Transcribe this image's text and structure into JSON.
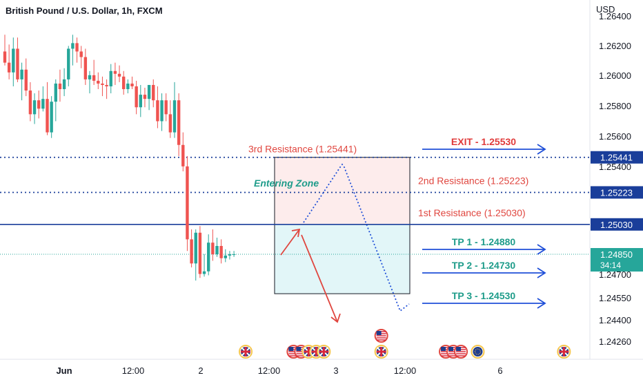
{
  "chart_data": {
    "type": "candlestick",
    "title": "British Pound / U.S. Dollar, 1h, FXCM",
    "currency": "USD",
    "y_range": [
      1.2413,
      1.2648
    ],
    "y_ticks": [
      "1.26400",
      "1.26200",
      "1.26000",
      "1.25800",
      "1.25600",
      "1.25400",
      "1.24700",
      "1.24550",
      "1.24400",
      "1.24260"
    ],
    "x_ticks": [
      "Jun",
      "12:00",
      "2",
      "12:00",
      "3",
      "12:00",
      "6"
    ],
    "candles": [
      {
        "o": 1.262,
        "h": 1.2632,
        "l": 1.261,
        "c": 1.2612
      },
      {
        "o": 1.2612,
        "h": 1.2625,
        "l": 1.26,
        "c": 1.2605
      },
      {
        "o": 1.2605,
        "h": 1.263,
        "l": 1.2595,
        "c": 1.2622
      },
      {
        "o": 1.2622,
        "h": 1.263,
        "l": 1.2598,
        "c": 1.26
      },
      {
        "o": 1.26,
        "h": 1.2612,
        "l": 1.2585,
        "c": 1.2607
      },
      {
        "o": 1.2607,
        "h": 1.2615,
        "l": 1.2588,
        "c": 1.2592
      },
      {
        "o": 1.2592,
        "h": 1.2598,
        "l": 1.257,
        "c": 1.2575
      },
      {
        "o": 1.2575,
        "h": 1.259,
        "l": 1.2568,
        "c": 1.2585
      },
      {
        "o": 1.2585,
        "h": 1.2592,
        "l": 1.2572,
        "c": 1.2579
      },
      {
        "o": 1.2579,
        "h": 1.2595,
        "l": 1.2577,
        "c": 1.2586
      },
      {
        "o": 1.2586,
        "h": 1.2598,
        "l": 1.256,
        "c": 1.2562
      },
      {
        "o": 1.2562,
        "h": 1.2588,
        "l": 1.2558,
        "c": 1.2584
      },
      {
        "o": 1.2584,
        "h": 1.26,
        "l": 1.257,
        "c": 1.2597
      },
      {
        "o": 1.2597,
        "h": 1.2607,
        "l": 1.2584,
        "c": 1.2593
      },
      {
        "o": 1.2593,
        "h": 1.2608,
        "l": 1.2588,
        "c": 1.26
      },
      {
        "o": 1.26,
        "h": 1.2624,
        "l": 1.2595,
        "c": 1.2622
      },
      {
        "o": 1.2622,
        "h": 1.2632,
        "l": 1.261,
        "c": 1.2626
      },
      {
        "o": 1.2626,
        "h": 1.263,
        "l": 1.2612,
        "c": 1.262
      },
      {
        "o": 1.262,
        "h": 1.2624,
        "l": 1.2608,
        "c": 1.2616
      },
      {
        "o": 1.2616,
        "h": 1.2622,
        "l": 1.2596,
        "c": 1.26
      },
      {
        "o": 1.26,
        "h": 1.2606,
        "l": 1.259,
        "c": 1.2603
      },
      {
        "o": 1.2603,
        "h": 1.2614,
        "l": 1.2596,
        "c": 1.2599
      },
      {
        "o": 1.2599,
        "h": 1.2605,
        "l": 1.2593,
        "c": 1.2597
      },
      {
        "o": 1.2597,
        "h": 1.2602,
        "l": 1.2588,
        "c": 1.2596
      },
      {
        "o": 1.2596,
        "h": 1.26,
        "l": 1.2586,
        "c": 1.2595
      },
      {
        "o": 1.2595,
        "h": 1.2611,
        "l": 1.259,
        "c": 1.2606
      },
      {
        "o": 1.2606,
        "h": 1.2612,
        "l": 1.2596,
        "c": 1.2604
      },
      {
        "o": 1.2604,
        "h": 1.261,
        "l": 1.2598,
        "c": 1.2602
      },
      {
        "o": 1.2602,
        "h": 1.2606,
        "l": 1.2589,
        "c": 1.2593
      },
      {
        "o": 1.2593,
        "h": 1.26,
        "l": 1.259,
        "c": 1.2597
      },
      {
        "o": 1.2597,
        "h": 1.2602,
        "l": 1.2593,
        "c": 1.2595
      },
      {
        "o": 1.2595,
        "h": 1.2599,
        "l": 1.2575,
        "c": 1.258
      },
      {
        "o": 1.258,
        "h": 1.2596,
        "l": 1.2573,
        "c": 1.2589
      },
      {
        "o": 1.2589,
        "h": 1.2594,
        "l": 1.258,
        "c": 1.2586
      },
      {
        "o": 1.2586,
        "h": 1.2595,
        "l": 1.2578,
        "c": 1.2596
      },
      {
        "o": 1.2596,
        "h": 1.26,
        "l": 1.258,
        "c": 1.2585
      },
      {
        "o": 1.2585,
        "h": 1.2595,
        "l": 1.2565,
        "c": 1.257
      },
      {
        "o": 1.257,
        "h": 1.259,
        "l": 1.2563,
        "c": 1.2585
      },
      {
        "o": 1.2585,
        "h": 1.259,
        "l": 1.257,
        "c": 1.2575
      },
      {
        "o": 1.2575,
        "h": 1.2585,
        "l": 1.2558,
        "c": 1.2562
      },
      {
        "o": 1.2562,
        "h": 1.2598,
        "l": 1.2558,
        "c": 1.2585
      },
      {
        "o": 1.2585,
        "h": 1.259,
        "l": 1.2545,
        "c": 1.2553
      },
      {
        "o": 1.2553,
        "h": 1.2562,
        "l": 1.2535,
        "c": 1.2538
      },
      {
        "o": 1.2538,
        "h": 1.2545,
        "l": 1.2487,
        "c": 1.2494
      },
      {
        "o": 1.2494,
        "h": 1.25,
        "l": 1.2475,
        "c": 1.2478
      },
      {
        "o": 1.2478,
        "h": 1.25,
        "l": 1.2465,
        "c": 1.2498
      },
      {
        "o": 1.2498,
        "h": 1.2502,
        "l": 1.2467,
        "c": 1.247
      },
      {
        "o": 1.247,
        "h": 1.2485,
        "l": 1.2468,
        "c": 1.2472
      },
      {
        "o": 1.2472,
        "h": 1.2497,
        "l": 1.2469,
        "c": 1.2492
      },
      {
        "o": 1.2492,
        "h": 1.25,
        "l": 1.248,
        "c": 1.2485
      },
      {
        "o": 1.2485,
        "h": 1.2495,
        "l": 1.2483,
        "c": 1.249
      },
      {
        "o": 1.249,
        "h": 1.2494,
        "l": 1.2478,
        "c": 1.2482
      },
      {
        "o": 1.2482,
        "h": 1.2488,
        "l": 1.2479,
        "c": 1.2484
      },
      {
        "o": 1.2484,
        "h": 1.2487,
        "l": 1.2481,
        "c": 1.2485
      },
      {
        "o": 1.2485,
        "h": 1.2487,
        "l": 1.2483,
        "c": 1.2485
      }
    ],
    "levels": [
      {
        "value": 1.25441,
        "label": "3rd Resistance (1.25441)",
        "badge": "1.25441",
        "style": "dotted"
      },
      {
        "value": 1.25223,
        "label": "2nd Resistance (1.25223)",
        "badge": "1.25223",
        "style": "dotted"
      },
      {
        "value": 1.2503,
        "label": "1st Resistance (1.25030)",
        "badge": "1.25030",
        "style": "solid"
      }
    ],
    "current_price": {
      "value": 1.2485,
      "badge": "1.24850",
      "countdown": "34:14"
    },
    "zones": {
      "upper": {
        "from": 1.2503,
        "to": 1.25441,
        "color": "#fdecec"
      },
      "lower": {
        "from": 1.2455,
        "to": 1.2503,
        "color": "#e2f6f8"
      }
    },
    "annotations": {
      "entering_zone": "Entering Zone",
      "exit": {
        "label": "EXIT - 1.25530",
        "value": 1.2553
      },
      "targets": [
        {
          "label": "TP 1 - 1.24880",
          "value": 1.2488
        },
        {
          "label": "TP 2 - 1.24730",
          "value": 1.2473
        },
        {
          "label": "TP 3 - 1.24530",
          "value": 1.2453
        }
      ]
    },
    "events": [
      {
        "x": 0.382,
        "flags": [
          "uk"
        ]
      },
      {
        "x": 0.48,
        "flags": [
          "us",
          "us",
          "uk",
          "uk",
          "uk"
        ]
      },
      {
        "x": 0.593,
        "flags": [
          "us"
        ],
        "row": 2
      },
      {
        "x": 0.593,
        "flags": [
          "uk"
        ]
      },
      {
        "x": 0.705,
        "flags": [
          "us",
          "us",
          "us"
        ]
      },
      {
        "x": 0.743,
        "flags": [
          "eu"
        ]
      },
      {
        "x": 0.877,
        "flags": [
          "uk"
        ]
      }
    ],
    "colors": {
      "up": "#26a69a",
      "down": "#ef5350",
      "resistance_text": "#e0463f",
      "level_line": "#1a3e9a",
      "exit_text": "#e03a3a",
      "tp_text": "#1e9c8a",
      "arrow_blue": "#1f4fd8",
      "entering_zone": "#1e9c8a",
      "current_price": "#26a69a"
    },
    "grid": false,
    "legend": "none"
  }
}
